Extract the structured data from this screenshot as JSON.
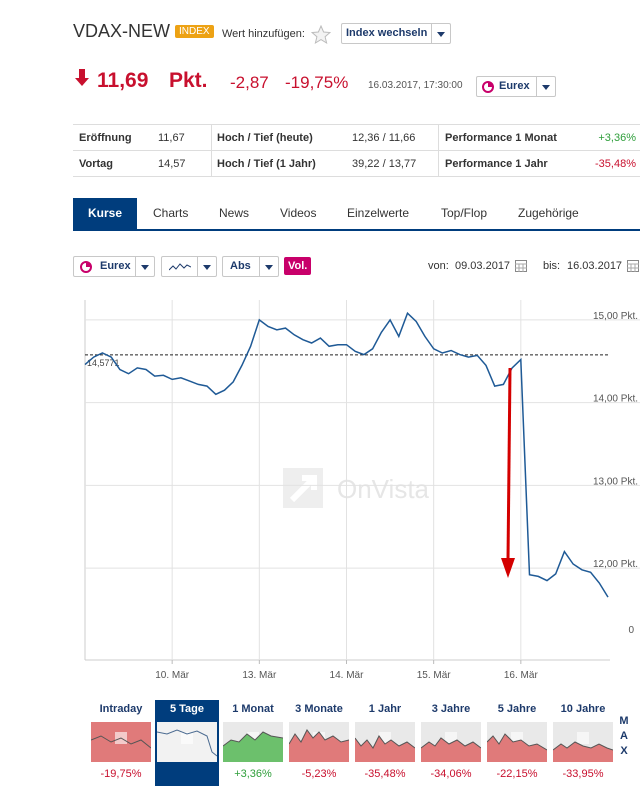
{
  "header": {
    "title": "VDAX-NEW",
    "badge": "INDEX",
    "watch_label": "Wert hinzufügen:",
    "switch_button": "Index wechseln"
  },
  "quote": {
    "price": "11,69",
    "unit": "Pkt.",
    "change": "-2,87",
    "change_pct": "-19,75%",
    "timestamp": "16.03.2017, 17:30:00",
    "exchange": "Eurex"
  },
  "stats": {
    "rows": [
      [
        "Eröffnung",
        "11,67",
        "Hoch / Tief (heute)",
        "12,36 / 11,66",
        "Performance 1 Monat",
        "+3,36%"
      ],
      [
        "Vortag",
        "14,57",
        "Hoch / Tief (1 Jahr)",
        "39,22 / 13,77",
        "Performance 1 Jahr",
        "-35,48%"
      ]
    ]
  },
  "tabs": [
    "Kurse",
    "Charts",
    "News",
    "Videos",
    "Einzelwerte",
    "Top/Flop",
    "Zugehörige"
  ],
  "controls": {
    "exchange": "Eurex",
    "mode": "Abs",
    "volume": "Vol.",
    "from_label": "von:",
    "from": "09.03.2017",
    "to_label": "bis:",
    "to": "16.03.2017"
  },
  "chart_data": {
    "type": "line",
    "color": "#1f5a96",
    "watermark": "OnVista",
    "grid": true,
    "categories": [
      null,
      null,
      null,
      null,
      null,
      null,
      null,
      null,
      null,
      null,
      "10. Mär",
      null,
      null,
      null,
      null,
      null,
      null,
      null,
      null,
      null,
      "13. Mär",
      null,
      null,
      null,
      null,
      null,
      null,
      null,
      null,
      null,
      "14. Mär",
      null,
      null,
      null,
      null,
      null,
      null,
      null,
      null,
      null,
      "15. Mär",
      null,
      null,
      null,
      null,
      null,
      null,
      null,
      null,
      null,
      "16. Mär",
      null,
      null,
      null,
      null,
      null,
      null,
      null,
      null,
      null,
      null
    ],
    "values": [
      14.46,
      14.55,
      14.6,
      14.55,
      14.4,
      14.35,
      14.42,
      14.4,
      14.32,
      14.33,
      14.28,
      14.3,
      14.26,
      14.22,
      14.2,
      14.1,
      14.15,
      14.25,
      14.45,
      14.68,
      15.0,
      14.92,
      14.88,
      14.9,
      14.82,
      14.76,
      14.72,
      14.78,
      14.68,
      14.7,
      14.7,
      14.62,
      14.58,
      14.65,
      14.85,
      15.0,
      14.8,
      15.08,
      14.98,
      14.8,
      14.65,
      14.6,
      14.63,
      14.58,
      14.55,
      14.57,
      14.45,
      14.2,
      14.22,
      14.42,
      14.52,
      11.92,
      11.9,
      11.85,
      11.93,
      12.2,
      12.05,
      11.98,
      11.95,
      11.82,
      11.65
    ],
    "ylim": [
      10.89,
      15.24
    ],
    "yticks": [
      {
        "value": 15,
        "label": "15,00 Pkt."
      },
      {
        "value": 14,
        "label": "14,00 Pkt."
      },
      {
        "value": 13,
        "label": "13,00 Pkt."
      },
      {
        "value": 12,
        "label": "12,00 Pkt."
      }
    ],
    "reference": {
      "value": 14.5771,
      "label": "14,5771"
    },
    "annotations": [
      "0"
    ]
  },
  "periods": [
    {
      "label": "Intraday",
      "change": "-19,75%"
    },
    {
      "label": "5 Tage",
      "selected": true
    },
    {
      "label": "1 Monat",
      "change": "+3,36%"
    },
    {
      "label": "3 Monate",
      "change": "-5,23%"
    },
    {
      "label": "1 Jahr",
      "change": "-35,48%"
    },
    {
      "label": "3 Jahre",
      "change": "-34,06%"
    },
    {
      "label": "5 Jahre",
      "change": "-22,15%"
    },
    {
      "label": "10 Jahre",
      "change": "-33,95%"
    }
  ],
  "max_label": "MAX"
}
